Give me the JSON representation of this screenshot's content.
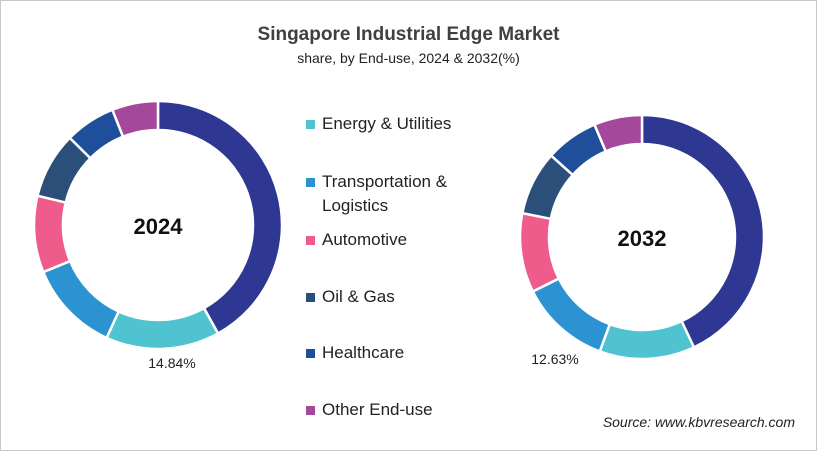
{
  "title": "Singapore Industrial Edge Market",
  "subtitle": "share, by End-use, 2024 & 2032(%)",
  "source": "Source: www.kbvresearch.com",
  "chart_data": [
    {
      "type": "donut",
      "center_label": "2024",
      "categories": [
        "",
        "Energy & Utilities",
        "Transportation & Logistics",
        "Automotive",
        "Oil & Gas",
        "Healthcare",
        "Other End-use"
      ],
      "values": [
        41.96,
        14.84,
        12.0,
        10.0,
        8.6,
        6.6,
        6.0
      ],
      "colors": [
        "#2e3792",
        "#4fc3cf",
        "#2b93d1",
        "#ef5b8a",
        "#2b4f78",
        "#1f4e9a",
        "#a4489c"
      ],
      "data_labels": [
        {
          "category": "Energy & Utilities",
          "text": "14.84%"
        }
      ]
    },
    {
      "type": "donut",
      "center_label": "2032",
      "categories": [
        "",
        "Energy & Utilities",
        "Transportation & Logistics",
        "Automotive",
        "Oil & Gas",
        "Healthcare",
        "Other End-use"
      ],
      "values": [
        43.0,
        12.63,
        12.0,
        10.5,
        8.5,
        7.0,
        6.37
      ],
      "colors": [
        "#2e3792",
        "#4fc3cf",
        "#2b93d1",
        "#ef5b8a",
        "#2b4f78",
        "#1f4e9a",
        "#a4489c"
      ],
      "data_labels": [
        {
          "category": "Energy & Utilities",
          "text": "12.63%"
        }
      ]
    }
  ],
  "legend": {
    "placement": "center",
    "items": [
      {
        "label": "Energy & Utilities",
        "color": "#4fc3cf"
      },
      {
        "label": "Transportation &",
        "label2": "Logistics",
        "color": "#2b93d1"
      },
      {
        "label": "Automotive",
        "color": "#ef5b8a"
      },
      {
        "label": "Oil & Gas",
        "color": "#2b4f78"
      },
      {
        "label": "Healthcare",
        "color": "#1f4e9a"
      },
      {
        "label": "Other End-use",
        "color": "#a4489c"
      }
    ]
  }
}
